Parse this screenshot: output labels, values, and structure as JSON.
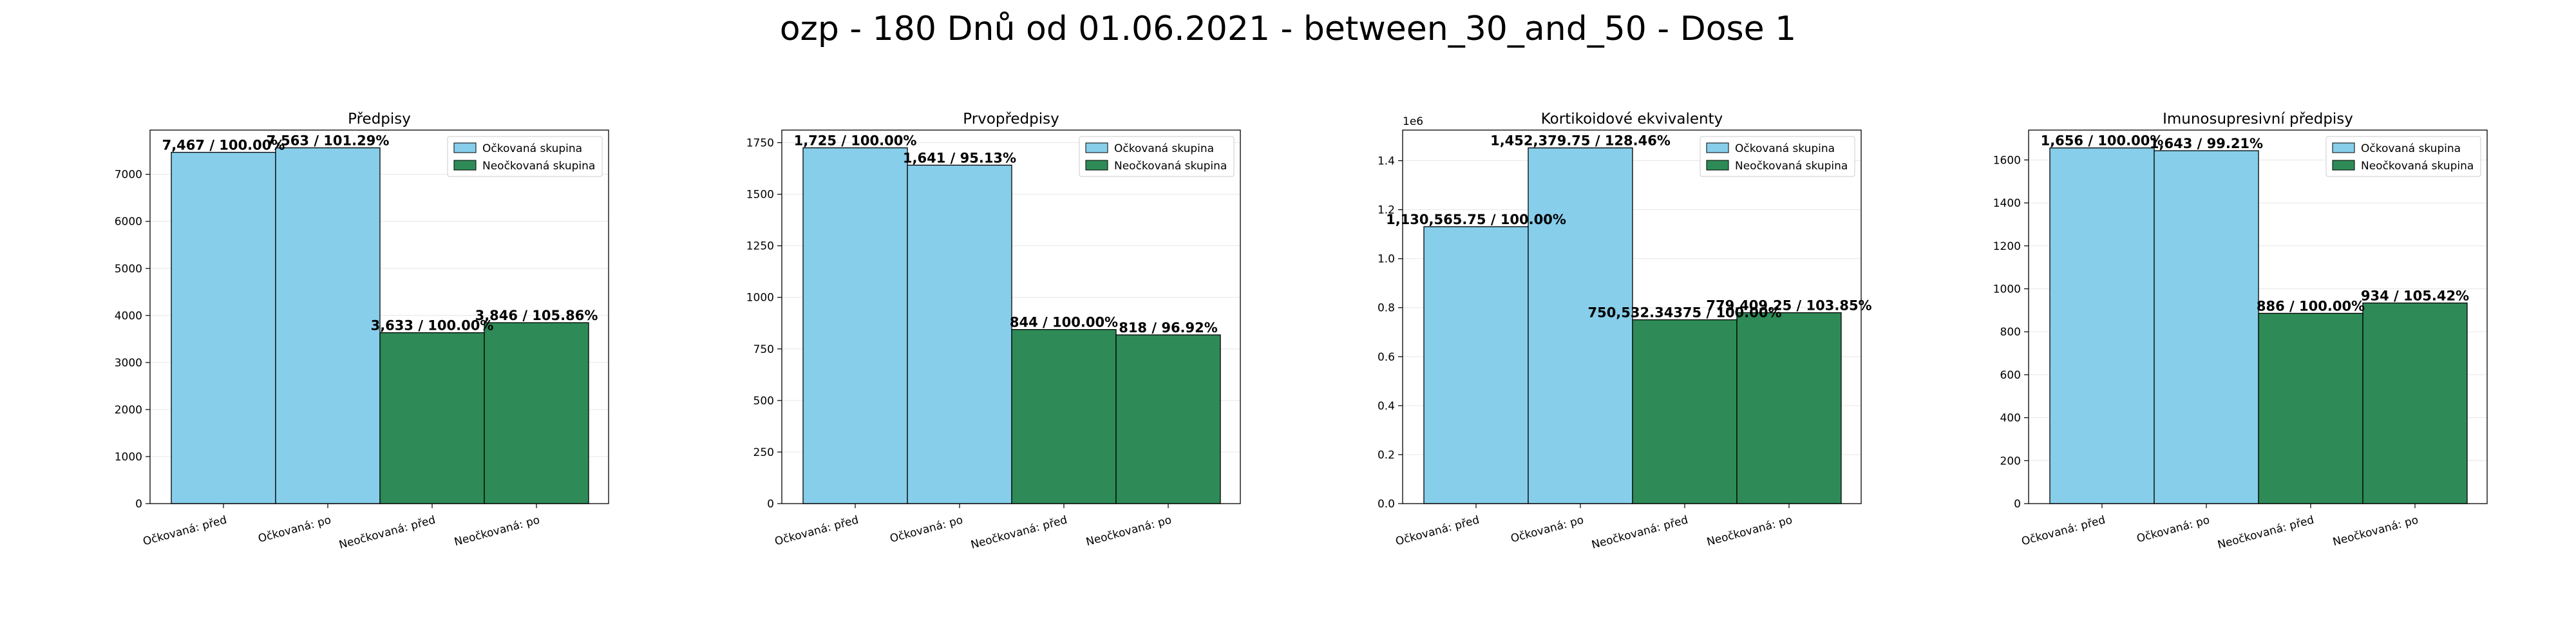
{
  "title": "ozp - 180 Dnů od 01.06.2021 - between_30_and_50 - Dose 1",
  "colors": {
    "vaccinated": "#87CEEB",
    "unvaccinated": "#2E8B57",
    "edge": "#000000",
    "grid": "#e6e6e6"
  },
  "chart_data": [
    {
      "type": "bar",
      "title": "Předpisy",
      "categories": [
        "Očkovaná: před",
        "Očkovaná: po",
        "Neočkovaná: před",
        "Neočkovaná: po"
      ],
      "values": [
        7467,
        7563,
        3633,
        3846
      ],
      "labels": [
        "7,467 / 100.00%",
        "7,563 / 101.29%",
        "3,633 / 100.00%",
        "3,846 / 105.86%"
      ],
      "groups": [
        "vaccinated",
        "vaccinated",
        "unvaccinated",
        "unvaccinated"
      ],
      "ylim": [
        0,
        7940
      ],
      "yticks": [
        0,
        1000,
        2000,
        3000,
        4000,
        5000,
        6000,
        7000
      ],
      "ytick_labels": [
        "0",
        "1000",
        "2000",
        "3000",
        "4000",
        "5000",
        "6000",
        "7000"
      ],
      "legend": [
        "Očkovaná skupina",
        "Neočkovaná skupina"
      ],
      "legend_position": "top-right",
      "grid": true
    },
    {
      "type": "bar",
      "title": "Prvopředpisy",
      "categories": [
        "Očkovaná: před",
        "Očkovaná: po",
        "Neočkovaná: před",
        "Neočkovaná: po"
      ],
      "values": [
        1725,
        1641,
        844,
        818
      ],
      "labels": [
        "1,725 / 100.00%",
        "1,641 / 95.13%",
        "844 / 100.00%",
        "818 / 96.92%"
      ],
      "groups": [
        "vaccinated",
        "vaccinated",
        "unvaccinated",
        "unvaccinated"
      ],
      "ylim": [
        0,
        1811
      ],
      "yticks": [
        0,
        250,
        500,
        750,
        1000,
        1250,
        1500,
        1750
      ],
      "ytick_labels": [
        "0",
        "250",
        "500",
        "750",
        "1000",
        "1250",
        "1500",
        "1750"
      ],
      "legend": [
        "Očkovaná skupina",
        "Neočkovaná skupina"
      ],
      "legend_position": "top-right",
      "grid": true
    },
    {
      "type": "bar",
      "title": "Kortikoidové ekvivalenty",
      "categories": [
        "Očkovaná: před",
        "Očkovaná: po",
        "Neočkovaná: před",
        "Neočkovaná: po"
      ],
      "values": [
        1130565.75,
        1452379.75,
        750532.34375,
        779409.25
      ],
      "labels": [
        "1,130,565.75 / 100.00%",
        "1,452,379.75 / 128.46%",
        "750,532.34375 / 100.00%",
        "779,409.25 / 103.85%"
      ],
      "groups": [
        "vaccinated",
        "vaccinated",
        "unvaccinated",
        "unvaccinated"
      ],
      "ylim": [
        0,
        1525000
      ],
      "yticks": [
        0,
        200000,
        400000,
        600000,
        800000,
        1000000,
        1200000,
        1400000
      ],
      "ytick_labels": [
        "0.0",
        "0.2",
        "0.4",
        "0.6",
        "0.8",
        "1.0",
        "1.2",
        "1.4"
      ],
      "y_multiplier": "1e6",
      "legend": [
        "Očkovaná skupina",
        "Neočkovaná skupina"
      ],
      "legend_position": "top-right",
      "grid": true
    },
    {
      "type": "bar",
      "title": "Imunosupresivní předpisy",
      "categories": [
        "Očkovaná: před",
        "Očkovaná: po",
        "Neočkovaná: před",
        "Neočkovaná: po"
      ],
      "values": [
        1656,
        1643,
        886,
        934
      ],
      "labels": [
        "1,656 / 100.00%",
        "1,643 / 99.21%",
        "886 / 100.00%",
        "934 / 105.42%"
      ],
      "groups": [
        "vaccinated",
        "vaccinated",
        "unvaccinated",
        "unvaccinated"
      ],
      "ylim": [
        0,
        1739
      ],
      "yticks": [
        0,
        200,
        400,
        600,
        800,
        1000,
        1200,
        1400,
        1600
      ],
      "ytick_labels": [
        "0",
        "200",
        "400",
        "600",
        "800",
        "1000",
        "1200",
        "1400",
        "1600"
      ],
      "legend": [
        "Očkovaná skupina",
        "Neočkovaná skupina"
      ],
      "legend_position": "top-right",
      "grid": true
    }
  ]
}
